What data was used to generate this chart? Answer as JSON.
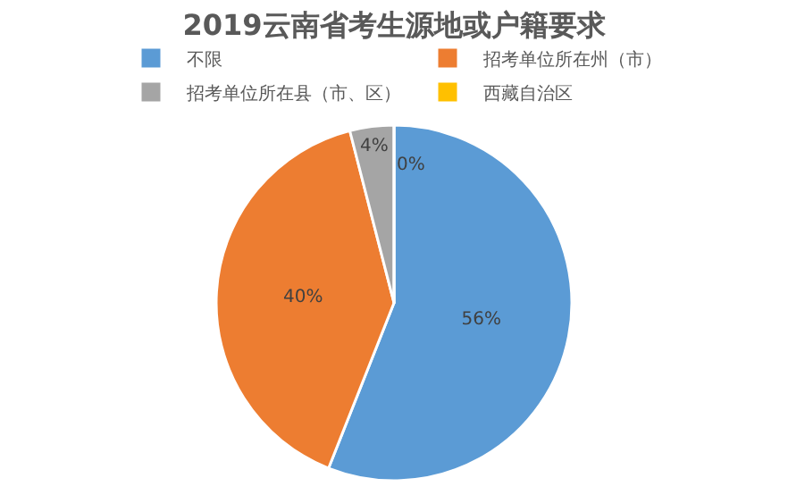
{
  "chart_data": {
    "type": "pie",
    "title": "2019云南省考生源地或户籍要求",
    "categories": [
      "不限",
      "招考单位所在州（市）",
      "招考单位所在县（市、区）",
      "西藏自治区"
    ],
    "values": [
      56,
      40,
      4,
      0
    ],
    "colors": [
      "#5b9bd5",
      "#ed7d31",
      "#a5a5a5",
      "#ffc000"
    ],
    "value_labels": [
      "56%",
      "40%",
      "4%",
      "0%"
    ],
    "legend": "top"
  }
}
